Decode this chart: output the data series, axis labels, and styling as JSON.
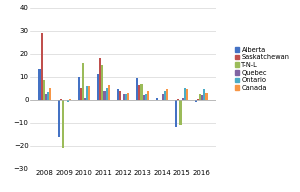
{
  "years": [
    2008,
    2009,
    2010,
    2011,
    2012,
    2013,
    2014,
    2015,
    2016
  ],
  "series": {
    "Alberta": [
      13.5,
      -16.0,
      10.0,
      11.0,
      4.5,
      9.5,
      1.0,
      -12.0,
      -1.0
    ],
    "Saskatchewan": [
      29.0,
      0.5,
      5.0,
      18.0,
      4.0,
      6.5,
      0.0,
      0.5,
      0.5
    ],
    "T-N-L": [
      8.5,
      -21.0,
      16.0,
      15.0,
      0.0,
      7.0,
      0.0,
      -11.0,
      2.5
    ],
    "Quebec": [
      2.5,
      0.0,
      1.0,
      4.0,
      2.5,
      2.0,
      2.5,
      1.0,
      2.0
    ],
    "Ontario": [
      3.5,
      -1.0,
      6.0,
      5.0,
      2.5,
      2.5,
      4.0,
      5.0,
      4.5
    ],
    "Canada": [
      5.0,
      0.5,
      6.0,
      6.5,
      3.0,
      4.0,
      4.5,
      4.5,
      3.0
    ]
  },
  "colors": {
    "Alberta": "#4472C4",
    "Saskatchewan": "#C0504D",
    "T-N-L": "#9BBB59",
    "Quebec": "#8064A2",
    "Ontario": "#4BACC6",
    "Canada": "#F79646"
  },
  "series_names": [
    "Alberta",
    "Saskatchewan",
    "T-N-L",
    "Quebec",
    "Ontario",
    "Canada"
  ],
  "ylim": [
    -30,
    40
  ],
  "yticks": [
    -30,
    -20,
    -10,
    0,
    10,
    20,
    30,
    40
  ],
  "bar_width": 0.11,
  "figsize": [
    3.0,
    1.92
  ],
  "dpi": 100,
  "background_color": "#ffffff",
  "tick_fontsize": 5.0,
  "legend_fontsize": 4.8
}
